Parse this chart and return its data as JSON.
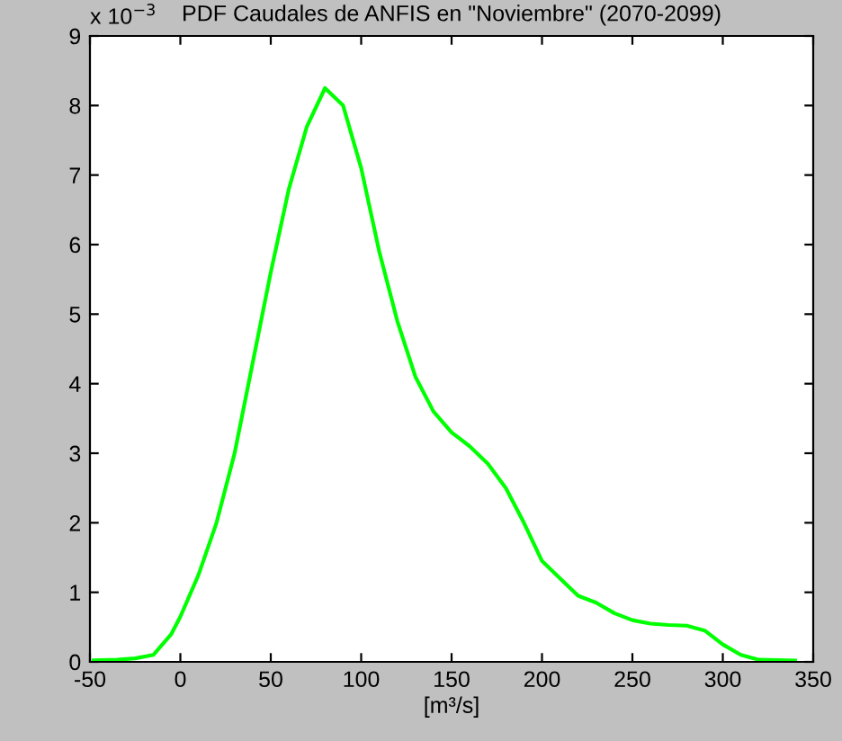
{
  "chart_data": {
    "type": "line",
    "title": "PDF Caudales de ANFIS en \"Noviembre\" (2070-2099)",
    "xlabel": "[m³/s]",
    "annotations": [
      "x 10$^{−3}$"
    ],
    "series": [
      {
        "color": "#00ff00",
        "x": [
          -48,
          -35,
          -25,
          -15,
          -5,
          0,
          10,
          20,
          30,
          40,
          50,
          60,
          70,
          80,
          90,
          100,
          110,
          120,
          130,
          140,
          150,
          160,
          170,
          180,
          190,
          200,
          210,
          220,
          230,
          240,
          250,
          260,
          270,
          280,
          290,
          300,
          310,
          320,
          340
        ],
        "values": [
          0.02,
          0.03,
          0.05,
          0.1,
          0.4,
          0.65,
          1.25,
          2.0,
          3.0,
          4.3,
          5.6,
          6.8,
          7.7,
          8.25,
          8.0,
          7.1,
          5.9,
          4.9,
          4.1,
          3.6,
          3.3,
          3.1,
          2.85,
          2.5,
          2.0,
          1.45,
          1.2,
          0.95,
          0.85,
          0.7,
          0.6,
          0.55,
          0.53,
          0.52,
          0.45,
          0.25,
          0.1,
          0.03,
          0.02
        ]
      }
    ],
    "xlim": [
      -50,
      350
    ],
    "xticks": [
      -50,
      0,
      50,
      100,
      150,
      200,
      250,
      300,
      350
    ],
    "ylim": [
      0,
      9
    ],
    "yticks": [
      0,
      1,
      2,
      3,
      4,
      5,
      6,
      7,
      8,
      9
    ],
    "grid": false,
    "legend": false,
    "marker": "none",
    "line_style": "solid"
  }
}
